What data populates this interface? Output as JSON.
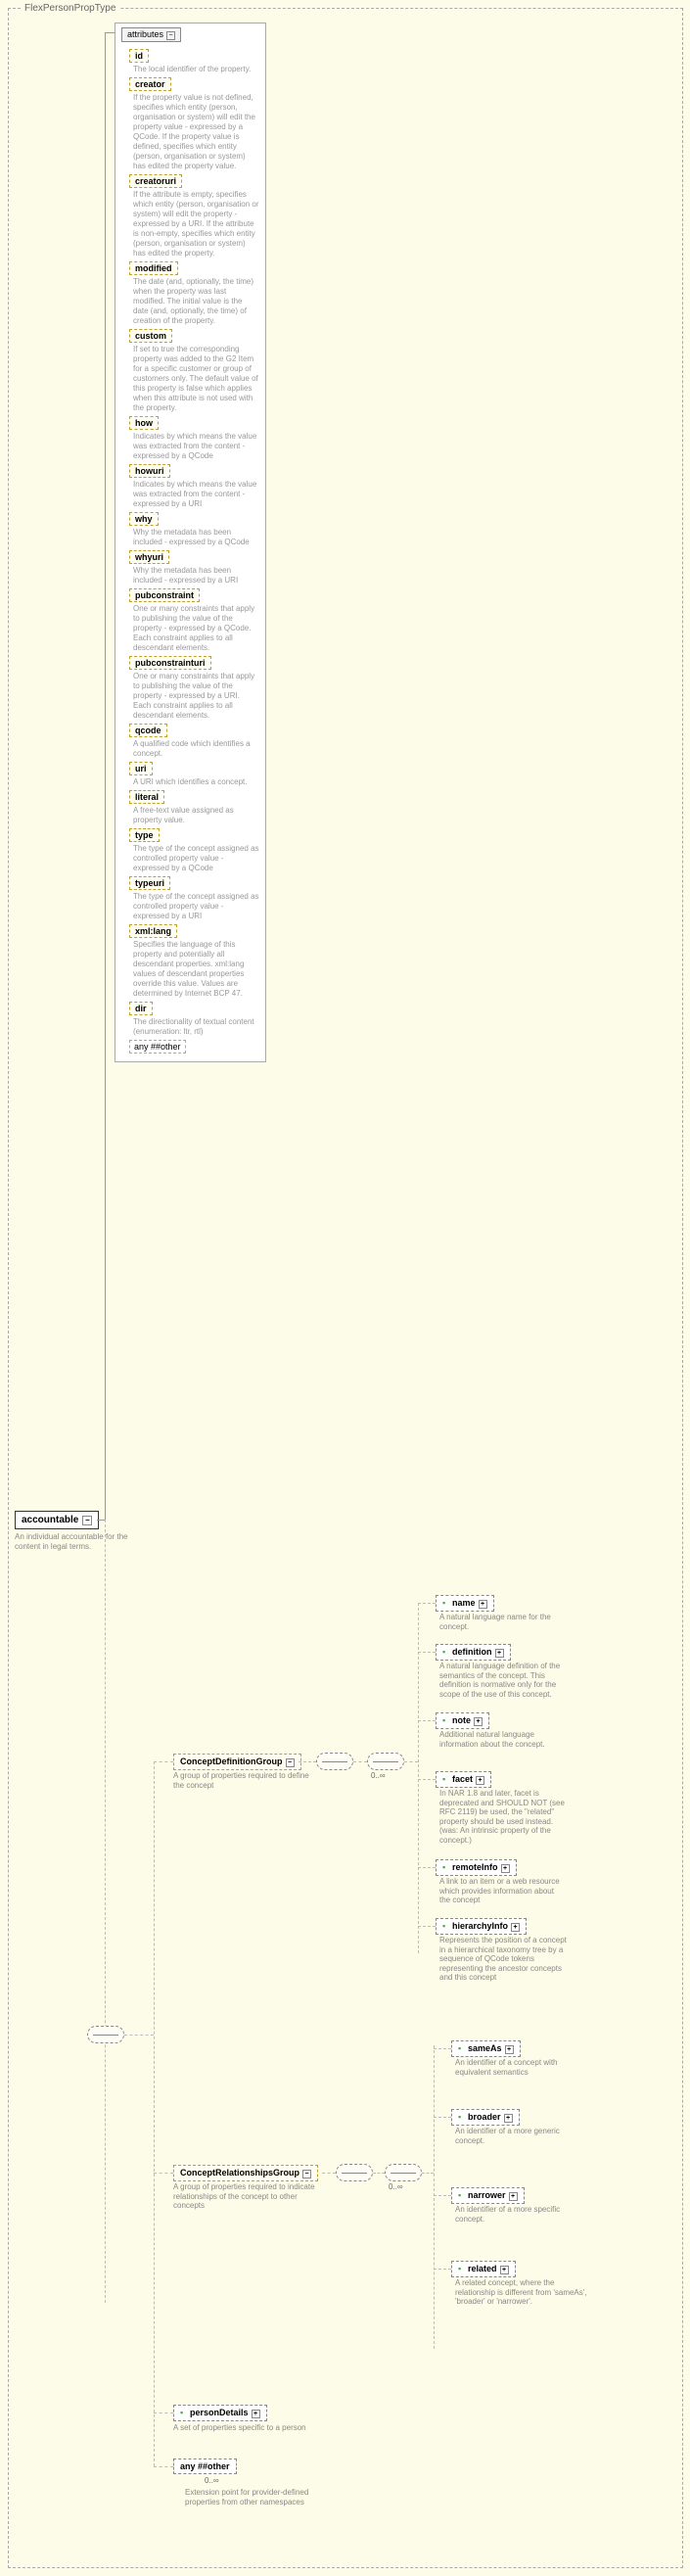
{
  "root": {
    "typeName": "FlexPersonPropType",
    "name": "accountable",
    "desc": "An individual accountable for the content in legal terms."
  },
  "attrPanel": {
    "title": "attributes",
    "any": "any ##other",
    "items": [
      {
        "name": "id",
        "desc": "The local identifier of the property."
      },
      {
        "name": "creator",
        "desc": "If the property value is not defined, specifies which entity (person, organisation or system) will edit the property value - expressed by a QCode. If the property value is defined, specifies which entity (person, organisation or system) has edited the property value."
      },
      {
        "name": "creatoruri",
        "desc": "If the attribute is empty, specifies which entity (person, organisation or system) will edit the property - expressed by a URI. If the attribute is non-empty, specifies which entity (person, organisation or system) has edited the property."
      },
      {
        "name": "modified",
        "desc": "The date (and, optionally, the time) when the property was last modified. The initial value is the date (and, optionally, the time) of creation of the property."
      },
      {
        "name": "custom",
        "desc": "If set to true the corresponding property was added to the G2 Item for a specific customer or group of customers only. The default value of this property is false which applies when this attribute is not used with the property."
      },
      {
        "name": "how",
        "desc": "Indicates by which means the value was extracted from the content - expressed by a QCode"
      },
      {
        "name": "howuri",
        "desc": "Indicates by which means the value was extracted from the content - expressed by a URI"
      },
      {
        "name": "why",
        "desc": "Why the metadata has been included - expressed by a QCode"
      },
      {
        "name": "whyuri",
        "desc": "Why the metadata has been included - expressed by a URI"
      },
      {
        "name": "pubconstraint",
        "desc": "One or many constraints that apply to publishing the value of the property - expressed by a QCode. Each constraint applies to all descendant elements."
      },
      {
        "name": "pubconstrainturi",
        "desc": "One or many constraints that apply to publishing the value of the property - expressed by a URI. Each constraint applies to all descendant elements."
      },
      {
        "name": "qcode",
        "desc": "A qualified code which identifies a concept."
      },
      {
        "name": "uri",
        "desc": "A URI which identifies a concept."
      },
      {
        "name": "literal",
        "desc": "A free-text value assigned as property value."
      },
      {
        "name": "type",
        "desc": "The type of the concept assigned as controlled property value - expressed by a QCode"
      },
      {
        "name": "typeuri",
        "desc": "The type of the concept assigned as controlled property value - expressed by a URI"
      },
      {
        "name": "xml:lang",
        "desc": "Specifies the language of this property and potentially all descendant properties. xml:lang values of descendant properties override this value. Values are determined by Internet BCP 47."
      },
      {
        "name": "dir",
        "desc": "The directionality of textual content (enumeration: ltr, rtl)"
      }
    ]
  },
  "groups": {
    "def": {
      "label": "ConceptDefinitionGroup",
      "desc": "A group of properties required to define the concept",
      "count": "0..∞"
    },
    "rel": {
      "label": "ConceptRelationshipsGroup",
      "desc": "A group of properties required to indicate relationships of the concept to other concepts",
      "count": "0..∞"
    }
  },
  "defElems": [
    {
      "name": "name",
      "desc": "A natural language name for the concept."
    },
    {
      "name": "definition",
      "desc": "A natural language definition of the semantics of the concept. This definition is normative only for the scope of the use of this concept."
    },
    {
      "name": "note",
      "desc": "Additional natural language information about the concept."
    },
    {
      "name": "facet",
      "desc": "In NAR 1.8 and later, facet is deprecated and SHOULD NOT (see RFC 2119) be used, the \"related\" property should be used instead.(was: An intrinsic property of the concept.)"
    },
    {
      "name": "remoteInfo",
      "desc": "A link to an item or a web resource which provides information about the concept"
    },
    {
      "name": "hierarchyInfo",
      "desc": "Represents the position of a concept in a hierarchical taxonomy tree by a sequence of QCode tokens representing the ancestor concepts and this concept"
    }
  ],
  "relElems": [
    {
      "name": "sameAs",
      "desc": "An identifier of a concept with equivalent semantics"
    },
    {
      "name": "broader",
      "desc": "An identifier of a more generic concept."
    },
    {
      "name": "narrower",
      "desc": "An identifier of a more specific concept."
    },
    {
      "name": "related",
      "desc": "A related concept, where the relationship is different from 'sameAs', 'broader' or 'narrower'."
    }
  ],
  "personDetails": {
    "label": "personDetails",
    "desc": "A set of properties specific to a person"
  },
  "anyOther": {
    "label": "any ##other",
    "count": "0..∞",
    "desc": "Extension point for provider-defined properties from other namespaces"
  }
}
